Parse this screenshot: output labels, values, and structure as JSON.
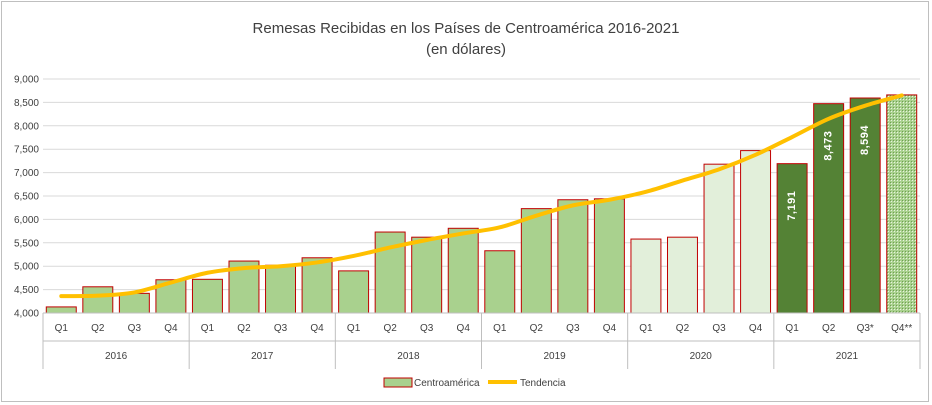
{
  "chart_data": {
    "type": "bar",
    "title": "Remesas Recibidas en los Países de Centroamérica 2016-2021",
    "subtitle": "(en dólares)",
    "ylim": [
      4000,
      9000
    ],
    "yticks": [
      "4,000",
      "4,500",
      "5,000",
      "5,500",
      "6,000",
      "6,500",
      "7,000",
      "7,500",
      "8,000",
      "8,500",
      "9,000"
    ],
    "ytick_values": [
      4000,
      4500,
      5000,
      5500,
      6000,
      6500,
      7000,
      7500,
      8000,
      8500,
      9000
    ],
    "grid": true,
    "legend_position": "bottom",
    "years": [
      {
        "label": "2016",
        "quarters": [
          "Q1",
          "Q2",
          "Q3",
          "Q4"
        ]
      },
      {
        "label": "2017",
        "quarters": [
          "Q1",
          "Q2",
          "Q3",
          "Q4"
        ]
      },
      {
        "label": "2018",
        "quarters": [
          "Q1",
          "Q2",
          "Q3",
          "Q4"
        ]
      },
      {
        "label": "2019",
        "quarters": [
          "Q1",
          "Q2",
          "Q3",
          "Q4"
        ]
      },
      {
        "label": "2020",
        "quarters": [
          "Q1",
          "Q2",
          "Q3",
          "Q4"
        ]
      },
      {
        "label": "2021",
        "quarters": [
          "Q1",
          "Q2",
          "Q3*",
          "Q4**"
        ]
      }
    ],
    "series": [
      {
        "name": "Centroamérica",
        "type": "bar",
        "values": [
          4130,
          4560,
          4420,
          4710,
          4720,
          5110,
          5020,
          5180,
          4900,
          5730,
          5620,
          5810,
          5330,
          6230,
          6420,
          6440,
          5580,
          5620,
          7180,
          7470,
          7191,
          8473,
          8594,
          8660
        ],
        "fill_colors": [
          "#a9d18e",
          "#a9d18e",
          "#a9d18e",
          "#a9d18e",
          "#a9d18e",
          "#a9d18e",
          "#a9d18e",
          "#a9d18e",
          "#a9d18e",
          "#a9d18e",
          "#a9d18e",
          "#a9d18e",
          "#a9d18e",
          "#a9d18e",
          "#a9d18e",
          "#a9d18e",
          "#e2efda",
          "#e2efda",
          "#e2efda",
          "#e2efda",
          "#548235",
          "#548235",
          "#548235",
          "#a9d18e"
        ],
        "border_color": "#c00000"
      },
      {
        "name": "Tendencia",
        "type": "line",
        "color": "#ffc000",
        "values": [
          4360,
          4370,
          4440,
          4650,
          4860,
          4960,
          5000,
          5080,
          5220,
          5400,
          5560,
          5700,
          5830,
          6080,
          6300,
          6420,
          6590,
          6830,
          7070,
          7380,
          7760,
          8150,
          8430,
          8650
        ]
      }
    ],
    "data_labels": [
      {
        "index": 20,
        "text": "7,191"
      },
      {
        "index": 21,
        "text": "8,473"
      },
      {
        "index": 22,
        "text": "8,594"
      }
    ]
  }
}
